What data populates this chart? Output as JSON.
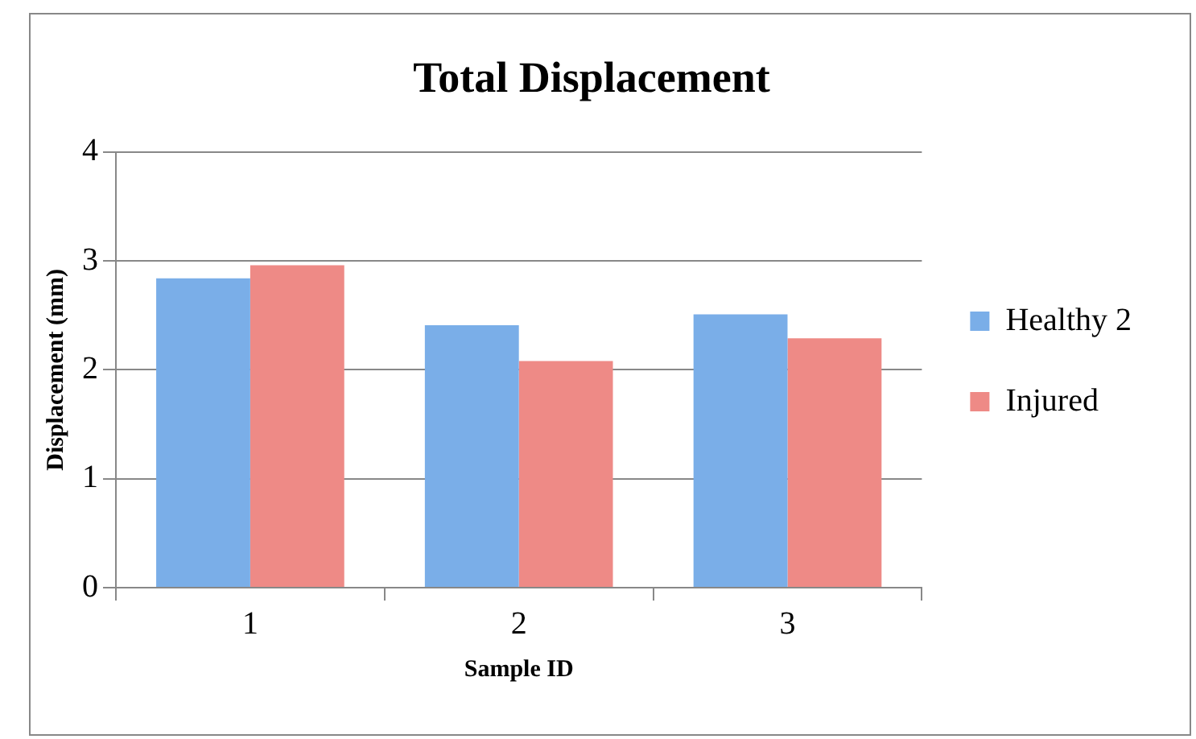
{
  "chart_data": {
    "type": "bar",
    "title": "Total Displacement",
    "xlabel": "Sample ID",
    "ylabel": "Displacement (mm)",
    "categories": [
      "1",
      "2",
      "3"
    ],
    "series": [
      {
        "name": "Healthy 2",
        "color": "#7aaee8",
        "values": [
          2.84,
          2.41,
          2.51
        ]
      },
      {
        "name": "Injured",
        "color": "#ee8a86",
        "values": [
          2.96,
          2.08,
          2.29
        ]
      }
    ],
    "ylim": [
      0,
      4
    ],
    "yticks": [
      0,
      1,
      2,
      3,
      4
    ],
    "grid": "y",
    "legend": "right"
  }
}
